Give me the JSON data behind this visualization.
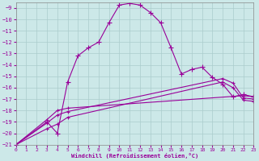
{
  "xlabel": "Windchill (Refroidissement éolien,°C)",
  "xlim": [
    0,
    23
  ],
  "ylim": [
    -21,
    -8.5
  ],
  "yticks": [
    -21,
    -20,
    -19,
    -18,
    -17,
    -16,
    -15,
    -14,
    -13,
    -12,
    -11,
    -10,
    -9
  ],
  "xticks": [
    0,
    1,
    2,
    3,
    4,
    5,
    6,
    7,
    8,
    9,
    10,
    11,
    12,
    13,
    14,
    15,
    16,
    17,
    18,
    19,
    20,
    21,
    22,
    23
  ],
  "bg_color": "#cce8e8",
  "line_color": "#990099",
  "grid_color": "#aacccc",
  "series": {
    "main": {
      "x": [
        0,
        3,
        4,
        5,
        6,
        7,
        8,
        9,
        10,
        11,
        12,
        13,
        14,
        15,
        16,
        17,
        18,
        19,
        20,
        21,
        22,
        23
      ],
      "y": [
        -21.0,
        -19.0,
        -20.0,
        -15.5,
        -13.2,
        -12.5,
        -12.0,
        -10.3,
        -8.75,
        -8.6,
        -8.75,
        -9.4,
        -10.3,
        -12.5,
        -14.8,
        -14.4,
        -14.2,
        -15.1,
        -15.7,
        -16.8,
        -16.6,
        -16.8
      ]
    },
    "lower1": {
      "x": [
        0,
        3,
        4,
        5,
        22,
        23
      ],
      "y": [
        -21.0,
        -18.8,
        -18.0,
        -17.8,
        -16.7,
        -16.8
      ]
    },
    "lower2": {
      "x": [
        0,
        3,
        4,
        5,
        20,
        21,
        22,
        23
      ],
      "y": [
        -21.0,
        -19.1,
        -18.4,
        -18.1,
        -15.2,
        -15.6,
        -16.9,
        -17.0
      ]
    },
    "lower3": {
      "x": [
        0,
        3,
        4,
        5,
        20,
        21,
        22,
        23
      ],
      "y": [
        -21.0,
        -19.6,
        -19.2,
        -18.6,
        -15.5,
        -16.0,
        -17.1,
        -17.2
      ]
    }
  }
}
